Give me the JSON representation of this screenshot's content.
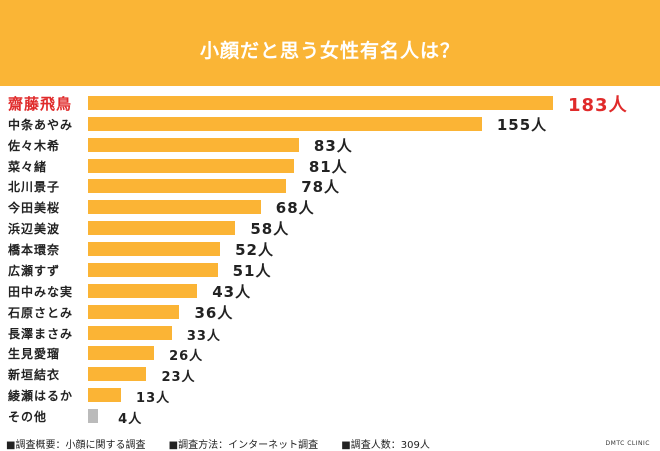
{
  "chart_data": {
    "type": "bar",
    "orientation": "horizontal",
    "title": "小顔だと思う女性有名人は？",
    "categories": [
      "齋藤飛鳥",
      "中条あやみ",
      "佐々木希",
      "菜々緒",
      "北川景子",
      "今田美桜",
      "浜辺美波",
      "橋本環奈",
      "広瀬すず",
      "田中みな実",
      "石原さとみ",
      "長澤まさみ",
      "生見愛瑠",
      "新垣結衣",
      "綾瀬はるか",
      "その他"
    ],
    "values": [
      183,
      155,
      83,
      81,
      78,
      68,
      58,
      52,
      51,
      43,
      36,
      33,
      26,
      23,
      13,
      4
    ],
    "value_suffix": "人",
    "xlim": [
      0,
      183
    ],
    "grid": false,
    "colors": {
      "bar": "#FBB435",
      "other_bar": "#BBBBBB",
      "highlight_text": "#E02B2B",
      "header": "#FAB536"
    },
    "highlight_index": 0
  },
  "footer": {
    "overview": "■調査概要：小顔に関する調査",
    "method": "■調査方法：インターネット調査",
    "count": "■調査人数：309人",
    "brand": "DMTC CLINIC"
  }
}
